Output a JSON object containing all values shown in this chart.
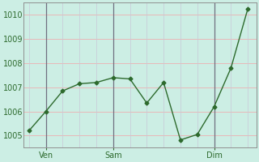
{
  "x": [
    0,
    1,
    2,
    3,
    4,
    5,
    6,
    7,
    8,
    9,
    10,
    11,
    12,
    13
  ],
  "y": [
    1005.2,
    1006.0,
    1006.85,
    1007.15,
    1007.2,
    1007.4,
    1007.35,
    1006.35,
    1007.2,
    1004.82,
    1005.05,
    1006.2,
    1007.8,
    1010.25
  ],
  "xtick_positions": [
    1,
    5,
    11
  ],
  "xtick_labels": [
    "Ven",
    "Sam",
    "Dim"
  ],
  "vline_positions": [
    1,
    5,
    11
  ],
  "ylim": [
    1004.5,
    1010.5
  ],
  "yticks": [
    1005,
    1006,
    1007,
    1008,
    1009,
    1010
  ],
  "xlim": [
    -0.3,
    13.5
  ],
  "line_color": "#2d6a2d",
  "marker": "D",
  "marker_size": 2.5,
  "bg_color": "#cceee4",
  "h_grid_color": "#e8b8b8",
  "v_grid_color": "#c8c8d8",
  "vline_color": "#707080",
  "tick_label_color": "#2d6a2d",
  "tick_fontsize": 7,
  "spine_color": "#909090"
}
